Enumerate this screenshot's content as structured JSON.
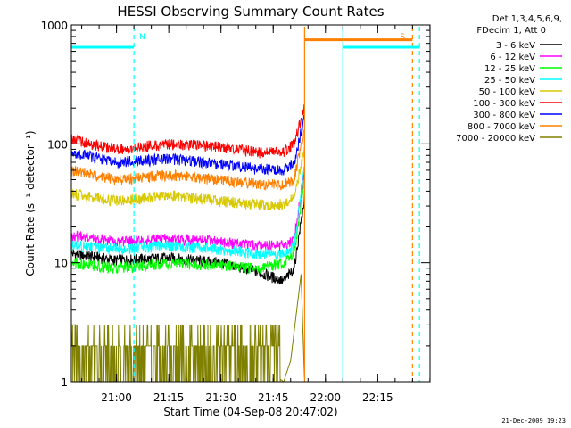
{
  "chart_data": {
    "type": "line",
    "title": "HESSI Observing Summary Count Rates",
    "xlabel": "Start Time (04-Sep-08 20:47:02)",
    "ylabel": "Count Rate (s⁻¹ detector⁻¹)",
    "y_scale": "log",
    "ylim": [
      1,
      1000
    ],
    "xlim_minutes_after_2047_02": [
      0,
      103
    ],
    "x_tick_labels": [
      "21:00",
      "21:15",
      "21:30",
      "21:45",
      "22:00",
      "22:15"
    ],
    "y_tick_labels": [
      "1",
      "10",
      "100",
      "1000"
    ],
    "legend_header": [
      "Det 1,3,4,5,6,9,",
      "FDecim 1, Att 0"
    ],
    "legend_position": "top-right",
    "grid": false,
    "series": [
      {
        "name": "3 - 6 keV",
        "color": "#000000",
        "x": [
          "20:47",
          "21:00",
          "21:15",
          "21:30",
          "21:40",
          "21:48",
          "21:51",
          "21:54"
        ],
        "values": [
          12,
          10.5,
          11,
          10,
          8.5,
          7,
          9,
          35
        ]
      },
      {
        "name": "6 - 12 keV",
        "color": "#ff00ff",
        "x": [
          "20:47",
          "21:00",
          "21:15",
          "21:30",
          "21:40",
          "21:48",
          "21:51",
          "21:54"
        ],
        "values": [
          17,
          15,
          16,
          15,
          14,
          14,
          16,
          60
        ]
      },
      {
        "name": "12 - 25 keV",
        "color": "#00ff00",
        "x": [
          "20:47",
          "21:00",
          "21:15",
          "21:30",
          "21:40",
          "21:48",
          "21:51",
          "21:54"
        ],
        "values": [
          10,
          9,
          10,
          9.5,
          9,
          10,
          12,
          50
        ]
      },
      {
        "name": "25 - 50 keV",
        "color": "#00ffff",
        "x": [
          "20:47",
          "21:00",
          "21:15",
          "21:30",
          "21:40",
          "21:48",
          "21:51",
          "21:54"
        ],
        "values": [
          14,
          13,
          14,
          13,
          12,
          12,
          14,
          65
        ]
      },
      {
        "name": "50 - 100 keV",
        "color": "#d8c800",
        "x": [
          "20:47",
          "21:00",
          "21:15",
          "21:30",
          "21:40",
          "21:48",
          "21:51",
          "21:54"
        ],
        "values": [
          38,
          33,
          37,
          33,
          31,
          31,
          35,
          90
        ]
      },
      {
        "name": "100 - 300 keV",
        "color": "#ff0000",
        "x": [
          "20:47",
          "21:00",
          "21:15",
          "21:30",
          "21:40",
          "21:48",
          "21:51",
          "21:54"
        ],
        "values": [
          110,
          90,
          100,
          95,
          85,
          85,
          100,
          200
        ]
      },
      {
        "name": "300 - 800 keV",
        "color": "#0000ff",
        "x": [
          "20:47",
          "21:00",
          "21:15",
          "21:30",
          "21:40",
          "21:48",
          "21:51",
          "21:54"
        ],
        "values": [
          85,
          70,
          75,
          68,
          62,
          60,
          70,
          170
        ]
      },
      {
        "name": "800 - 7000 keV",
        "color": "#ff8000",
        "x": [
          "20:47",
          "21:00",
          "21:15",
          "21:30",
          "21:40",
          "21:48",
          "21:51",
          "21:54"
        ],
        "values": [
          60,
          50,
          55,
          50,
          46,
          45,
          50,
          140
        ]
      },
      {
        "name": "7000 - 20000 keV",
        "color": "#808000",
        "x": [
          "20:47",
          "21:00",
          "21:15",
          "21:30",
          "21:40",
          "21:48",
          "21:50",
          "21:53",
          "21:54"
        ],
        "values": [
          2,
          1.5,
          2,
          2,
          1.5,
          1,
          1.5,
          8,
          1
        ]
      }
    ],
    "flag_bars": [
      {
        "label": "N",
        "color": "#00ffff",
        "value": 650,
        "spans": [
          [
            "20:47",
            "21:05"
          ],
          [
            "22:05",
            "22:27"
          ]
        ]
      },
      {
        "label": "S",
        "color": "#ff8000",
        "value": 750,
        "spans": [
          [
            "21:54",
            "22:25"
          ]
        ]
      }
    ],
    "vertical_lines": [
      {
        "x": "21:05",
        "color": "#00ffff",
        "style": "dashed"
      },
      {
        "x": "21:54",
        "color": "#ff8000",
        "style": "solid"
      },
      {
        "x": "22:05",
        "color": "#00ffff",
        "style": "solid"
      },
      {
        "x": "22:25",
        "color": "#ff8000",
        "style": "dashed"
      },
      {
        "x": "22:27",
        "color": "#00ffff",
        "style": "dashed"
      }
    ]
  },
  "footer": "21-Dec-2009 19:23"
}
